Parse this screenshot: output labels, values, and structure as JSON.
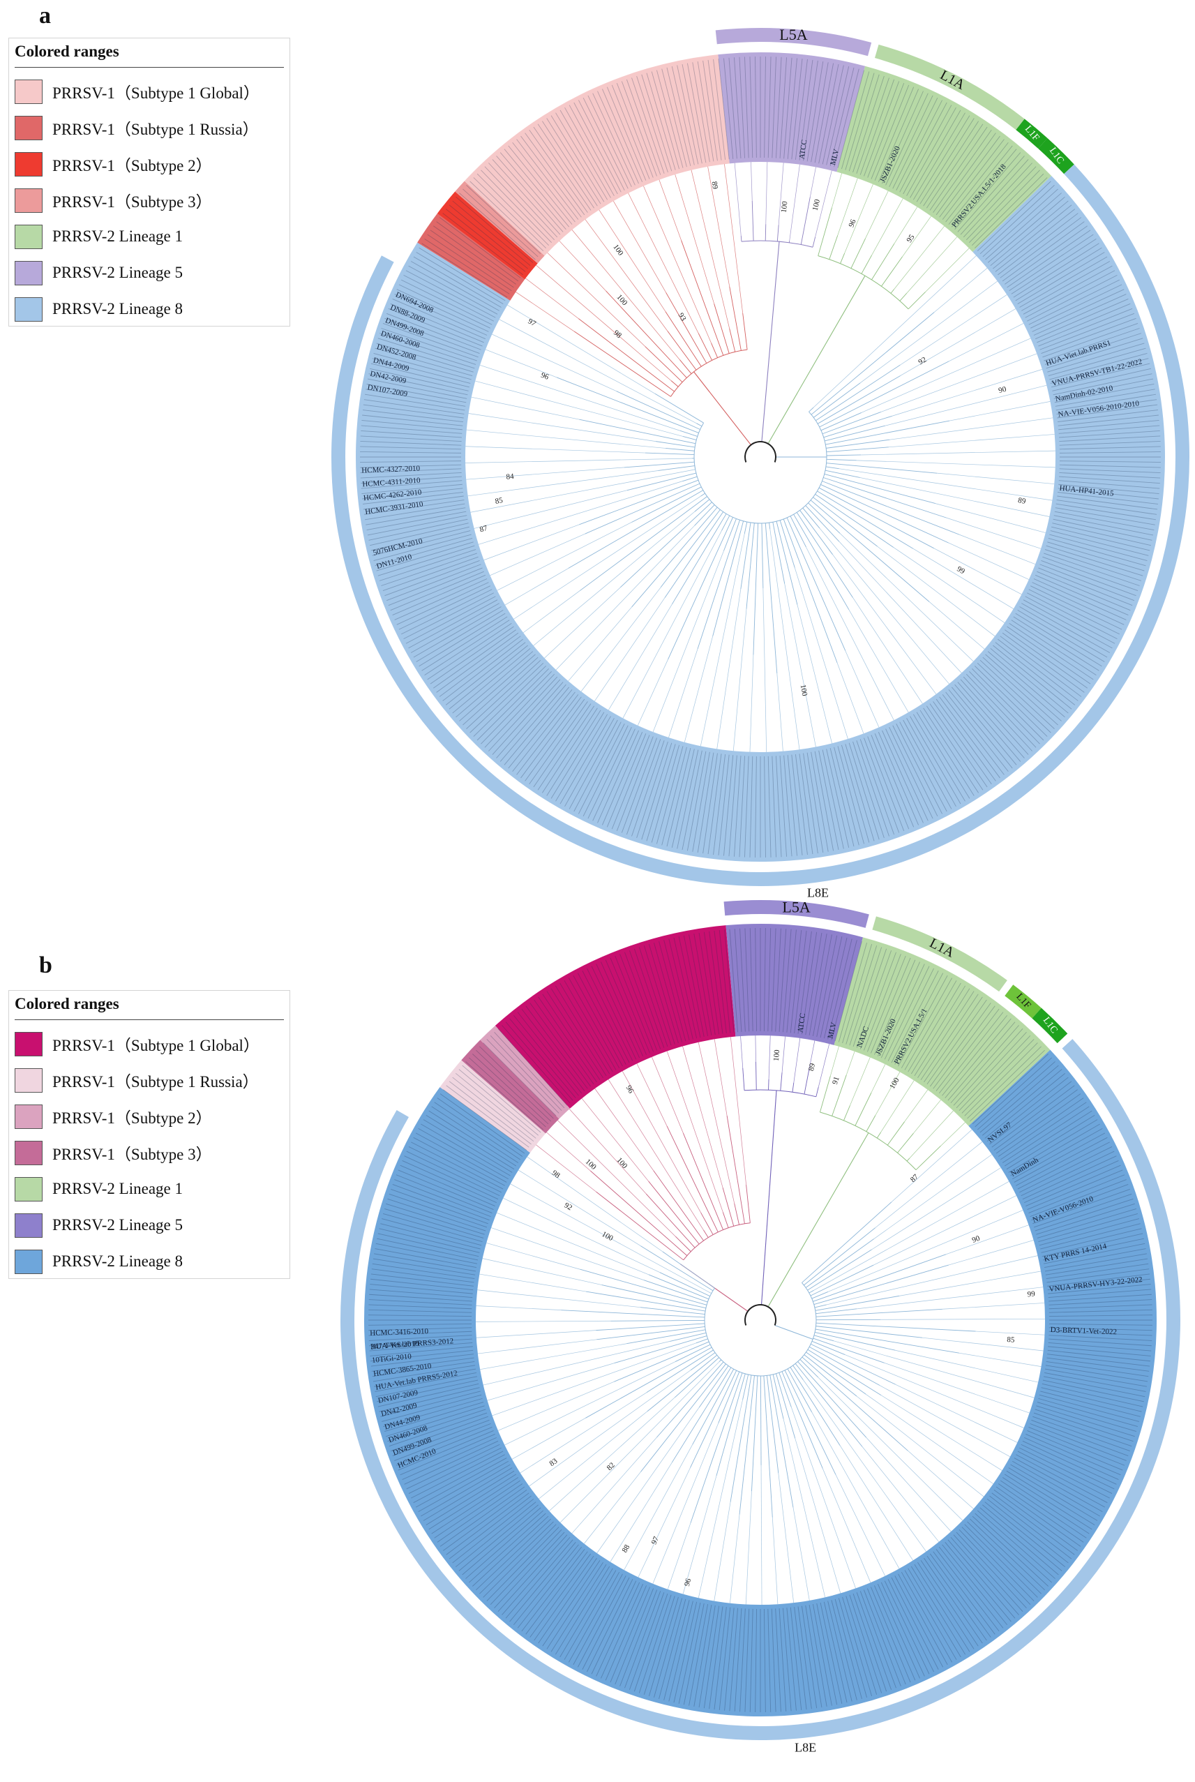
{
  "panels": [
    {
      "id": "a",
      "letter": "a",
      "legend": {
        "title": "Colored ranges",
        "items": [
          {
            "label": "PRRSV-1（Subtype 1 Global）",
            "color": "#f6c9c9"
          },
          {
            "label": "PRRSV-1（Subtype 1 Russia）",
            "color": "#e06868"
          },
          {
            "label": "PRRSV-1（Subtype 2）",
            "color": "#ee3b30"
          },
          {
            "label": "PRRSV-1（Subtype 3）",
            "color": "#ec9b9b"
          },
          {
            "label": "PRRSV-2 Lineage 1",
            "color": "#b7d9a6"
          },
          {
            "label": "PRRSV-2 Lineage 5",
            "color": "#b7a9da"
          },
          {
            "label": "PRRSV-2 Lineage 8",
            "color": "#a3c6e8"
          }
        ]
      },
      "clades": [
        {
          "name": "L5A",
          "color": "#b7a9da"
        },
        {
          "name": "L1A",
          "color": "#b7d9a6"
        },
        {
          "name": "L1F",
          "color": "#1ea31e"
        },
        {
          "name": "L1C",
          "color": "#1ea31e"
        },
        {
          "name": "L8E",
          "color": "#a3c6e8"
        }
      ],
      "branch_colors": {
        "prrsv1": "#d46060",
        "lineage1": "#8fbf7f",
        "lineage5": "#8c7fbf",
        "lineage8": "#8db6d8"
      },
      "bootstrap_labels": [
        "100",
        "100",
        "98",
        "97",
        "93",
        "96",
        "89",
        "100",
        "100",
        "96",
        "95",
        "92",
        "90",
        "89",
        "99",
        "100",
        "87",
        "85",
        "84"
      ],
      "taxa_labels": [
        "HCMC-3931-2010",
        "HCMC-4262-2010",
        "HCMC-4311-2010",
        "HCMC-4327-2010",
        "5076HCM-2010",
        "DN11-2010",
        "DN107-2009",
        "DN42-2009",
        "DN44-2009",
        "DN452-2008",
        "DN460-2008",
        "DN499-2008",
        "DN88-2009",
        "DN694-2008",
        "VNUA-PRRSV-TB1-22-2022",
        "NA-VIE-V056-2010-2010",
        "HUA-HP41-2015",
        "HUA-Viet.lab.PRRS1",
        "PRRSV2.USA.L5/1-2018",
        "NamDinh-02-2010",
        "JSZB1-2020",
        "MLV",
        "ATCC"
      ]
    },
    {
      "id": "b",
      "letter": "b",
      "legend": {
        "title": "Colored ranges",
        "items": [
          {
            "label": "PRRSV-1（Subtype 1 Global）",
            "color": "#c8106f"
          },
          {
            "label": "PRRSV-1（Subtype 1 Russia）",
            "color": "#f0d6e0"
          },
          {
            "label": "PRRSV-1（Subtype 2）",
            "color": "#dba3bf"
          },
          {
            "label": "PRRSV-1（Subtype 3）",
            "color": "#c46c98"
          },
          {
            "label": "PRRSV-2 Lineage 1",
            "color": "#b7d9a6"
          },
          {
            "label": "PRRSV-2 Lineage 5",
            "color": "#8e80cc"
          },
          {
            "label": "PRRSV-2 Lineage 8",
            "color": "#6ea6db"
          }
        ]
      },
      "clades": [
        {
          "name": "L5A",
          "color": "#9a8dd2"
        },
        {
          "name": "L1A",
          "color": "#b7d9a6"
        },
        {
          "name": "L1F",
          "color": "#6ec33a"
        },
        {
          "name": "L1C",
          "color": "#1ea31e"
        },
        {
          "name": "L8E",
          "color": "#a3c6e8"
        }
      ],
      "branch_colors": {
        "prrsv1": "#c8607f",
        "lineage1": "#8fbf7f",
        "lineage5": "#7060b8",
        "lineage8": "#8db6d8"
      },
      "bootstrap_labels": [
        "100",
        "100",
        "98",
        "92",
        "100",
        "96",
        "100",
        "89",
        "91",
        "100",
        "87",
        "90",
        "99",
        "85",
        "83",
        "88",
        "96",
        "97",
        "82"
      ],
      "taxa_labels": [
        "HCMC-3416-2010",
        "347-T-KS-2010",
        "10TiGi-2010",
        "HCMC-3865-2010",
        "HUA-Vet.lab PRRS5-2012",
        "DN107-2009",
        "DN42-2009",
        "DN44-2009",
        "DN460-2008",
        "DN499-2008",
        "HCMC-2010",
        "VNUA-PRRSV-HY3-22-2022",
        "D3-BRTV1-Vet-2022",
        "KTY PRRS 14-2014",
        "NVSL97",
        "PRRSV2.USA.L5/1",
        "JSZB1-2020",
        "NADC",
        "MLV",
        "ATCC",
        "HUA-Vet.lab PRRS3-2012",
        "NamDinh",
        "NA-VIE-V056-2010"
      ]
    }
  ]
}
